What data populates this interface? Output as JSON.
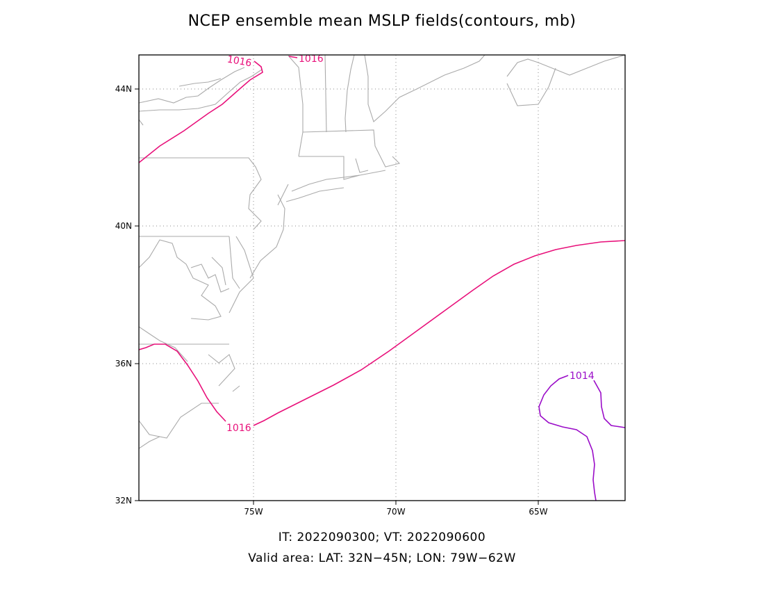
{
  "title": "NCEP ensemble mean MSLP fields(contours, mb)",
  "footer": {
    "line1": "IT: 2022090300; VT: 2022090600",
    "line2": "Valid area: LAT: 32N−45N; LON: 79W−62W"
  },
  "map": {
    "lat_range": [
      32,
      45
    ],
    "lon_range": [
      -79,
      -62
    ],
    "lat_ticks": [
      {
        "value": 44,
        "label": "44N"
      },
      {
        "value": 40,
        "label": "40N"
      },
      {
        "value": 36,
        "label": "36N"
      },
      {
        "value": 32,
        "label": "32N"
      }
    ],
    "lon_ticks": [
      {
        "value": -75,
        "label": "75W"
      },
      {
        "value": -70,
        "label": "70W"
      },
      {
        "value": -65,
        "label": "65W"
      }
    ],
    "gridlines": "dotted",
    "coastline_color": "#aaaaaa"
  },
  "contours": [
    {
      "level": 1016,
      "label": "1016",
      "color": "#e8107a"
    },
    {
      "level": 1016,
      "label": "1016",
      "color": "#e8107a"
    },
    {
      "level": 1016,
      "label": "1016",
      "color": "#e8107a"
    },
    {
      "level": 1014,
      "label": "1014",
      "color": "#9a0cc8"
    }
  ]
}
